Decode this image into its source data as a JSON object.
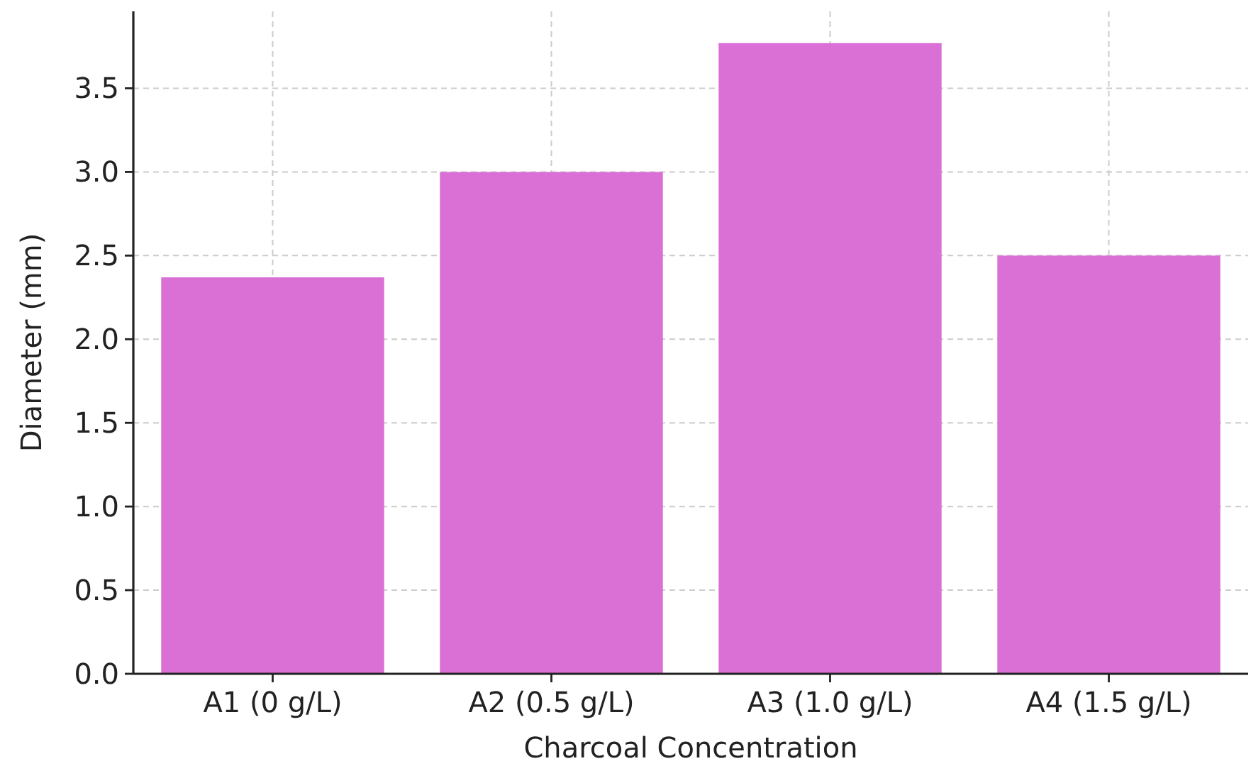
{
  "chart_data": {
    "type": "bar",
    "xlabel": "Charcoal Concentration",
    "ylabel": "Diameter (mm)",
    "categories": [
      "A1 (0 g/L)",
      "A2 (0.5 g/L)",
      "A3 (1.0 g/L)",
      "A4 (1.5 g/L)"
    ],
    "values": [
      2.37,
      3.0,
      3.77,
      2.5
    ],
    "color": "#da70d6",
    "ylim": [
      0,
      3.96
    ],
    "yticks": [
      {
        "value": 0,
        "label": "0.0"
      },
      {
        "value": 0.5,
        "label": "0.5"
      },
      {
        "value": 1,
        "label": "1.0"
      },
      {
        "value": 1.5,
        "label": "1.5"
      },
      {
        "value": 2,
        "label": "2.0"
      },
      {
        "value": 2.5,
        "label": "2.5"
      },
      {
        "value": 3,
        "label": "3.0"
      },
      {
        "value": 3.5,
        "label": "3.5"
      }
    ],
    "grid": true
  }
}
